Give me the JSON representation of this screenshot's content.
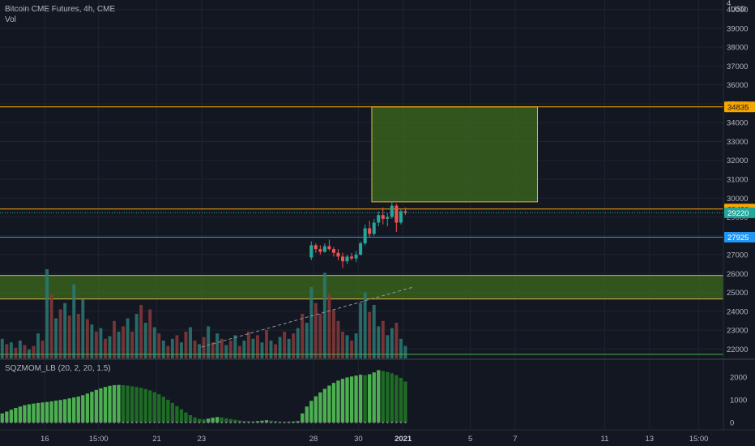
{
  "header": {
    "title": "Bitcoin CME Futures, 4h, CME",
    "volume_label": "Vol",
    "currency": "USD"
  },
  "indicator": {
    "label": "SQZMOM_LB (20, 2, 20, 1.5)"
  },
  "colors": {
    "background": "#131722",
    "grid": "#1f2430",
    "text": "#b2b5be",
    "candle_up": "#26a69a",
    "candle_down": "#ef5350",
    "vol_up": "#2a7a73",
    "vol_down": "#8a3a3a",
    "zone_fill": "#3d6b1e",
    "zone_border": "#e0b341",
    "line_orange": "#f7a600",
    "line_blue": "#2196f3",
    "badge_green": "#26a69a",
    "mom_lime": "#4caf50",
    "mom_dark": "#1e6b24"
  },
  "price_axis": {
    "ticks": [
      22000,
      23000,
      24000,
      25000,
      26000,
      27000,
      28000,
      29000,
      30000,
      31000,
      32000,
      33000,
      34000,
      35000,
      36000,
      37000,
      38000,
      39000,
      40000
    ],
    "top_partial": "4"
  },
  "price_badges": [
    {
      "label": "34835",
      "price": 34835,
      "color": "#f7a600"
    },
    {
      "label": "29420",
      "price": 29420,
      "color": "#f7a600"
    },
    {
      "label": "29220",
      "price": 29220,
      "color": "#26a69a"
    },
    {
      "label": "27925",
      "price": 27925,
      "color": "#2196f3"
    }
  ],
  "horizontal_lines": [
    {
      "price": 34835,
      "color": "#f7a600"
    },
    {
      "price": 29420,
      "color": "#f7a600"
    },
    {
      "price": 27925,
      "color": "#2196f3"
    }
  ],
  "zones": [
    {
      "name": "target-box",
      "price_top": 34835,
      "price_bottom": 29800,
      "time_start": 30.6,
      "time_end": 38.0
    },
    {
      "name": "support-band",
      "price_top": 25900,
      "price_bottom": 24650,
      "time_start": 13.0,
      "time_end": 51.0
    }
  ],
  "momentum_axis": {
    "ticks": [
      0,
      1000,
      2000
    ]
  },
  "time_axis": {
    "ticks": [
      {
        "label": "16",
        "day": 16
      },
      {
        "label": "15:00",
        "day": 18.4
      },
      {
        "label": "21",
        "day": 21
      },
      {
        "label": "23",
        "day": 23
      },
      {
        "label": "28",
        "day": 28
      },
      {
        "label": "30",
        "day": 30
      },
      {
        "label": "2021",
        "day": 32
      },
      {
        "label": "5",
        "day": 35
      },
      {
        "label": "7",
        "day": 37
      },
      {
        "label": "11",
        "day": 41
      },
      {
        "label": "13",
        "day": 43
      },
      {
        "label": "15:00",
        "day": 45.2
      }
    ]
  },
  "chart_data": {
    "type": "candlestick",
    "x_range_days": [
      14.0,
      46.3
    ],
    "price_range": [
      21500,
      40500
    ],
    "candles": [
      {
        "day": 27.9,
        "o": 26850,
        "h": 27700,
        "l": 26700,
        "c": 27500
      },
      {
        "day": 28.1,
        "o": 27500,
        "h": 27600,
        "l": 27100,
        "c": 27300
      },
      {
        "day": 28.3,
        "o": 27300,
        "h": 27500,
        "l": 27000,
        "c": 27150
      },
      {
        "day": 28.5,
        "o": 27150,
        "h": 27600,
        "l": 27100,
        "c": 27450
      },
      {
        "day": 28.7,
        "o": 27450,
        "h": 27800,
        "l": 27200,
        "c": 27300
      },
      {
        "day": 28.9,
        "o": 27300,
        "h": 27400,
        "l": 26900,
        "c": 27100
      },
      {
        "day": 29.1,
        "o": 27100,
        "h": 27300,
        "l": 26700,
        "c": 26900
      },
      {
        "day": 29.3,
        "o": 26900,
        "h": 27100,
        "l": 26300,
        "c": 26650
      },
      {
        "day": 29.5,
        "o": 26650,
        "h": 27000,
        "l": 26500,
        "c": 26900
      },
      {
        "day": 29.7,
        "o": 26900,
        "h": 27100,
        "l": 26700,
        "c": 26800
      },
      {
        "day": 29.9,
        "o": 26800,
        "h": 27200,
        "l": 26600,
        "c": 27000
      },
      {
        "day": 30.1,
        "o": 27000,
        "h": 27700,
        "l": 26950,
        "c": 27600
      },
      {
        "day": 30.3,
        "o": 27600,
        "h": 28600,
        "l": 27500,
        "c": 28400
      },
      {
        "day": 30.5,
        "o": 28400,
        "h": 28800,
        "l": 27950,
        "c": 28100
      },
      {
        "day": 30.7,
        "o": 28100,
        "h": 28900,
        "l": 28000,
        "c": 28700
      },
      {
        "day": 30.9,
        "o": 28700,
        "h": 29300,
        "l": 28500,
        "c": 29100
      },
      {
        "day": 31.1,
        "o": 29100,
        "h": 29500,
        "l": 28600,
        "c": 28900
      },
      {
        "day": 31.3,
        "o": 28900,
        "h": 29200,
        "l": 28500,
        "c": 29000
      },
      {
        "day": 31.5,
        "o": 29000,
        "h": 29800,
        "l": 28900,
        "c": 29600
      },
      {
        "day": 31.7,
        "o": 29600,
        "h": 29700,
        "l": 28200,
        "c": 28700
      },
      {
        "day": 31.9,
        "o": 28700,
        "h": 29400,
        "l": 28600,
        "c": 29300
      },
      {
        "day": 32.1,
        "o": 29300,
        "h": 29500,
        "l": 29100,
        "c": 29220
      }
    ],
    "volume": [
      {
        "day": 14.1,
        "v": 0.22,
        "up": true
      },
      {
        "day": 14.3,
        "v": 0.16,
        "up": false
      },
      {
        "day": 14.5,
        "v": 0.18,
        "up": true
      },
      {
        "day": 14.7,
        "v": 0.12,
        "up": false
      },
      {
        "day": 14.9,
        "v": 0.2,
        "up": true
      },
      {
        "day": 15.1,
        "v": 0.15,
        "up": false
      },
      {
        "day": 15.3,
        "v": 0.1,
        "up": true
      },
      {
        "day": 15.5,
        "v": 0.14,
        "up": false
      },
      {
        "day": 15.7,
        "v": 0.28,
        "up": true
      },
      {
        "day": 15.9,
        "v": 0.2,
        "up": false
      },
      {
        "day": 16.1,
        "v": 1.0,
        "up": true
      },
      {
        "day": 16.3,
        "v": 0.72,
        "up": false
      },
      {
        "day": 16.5,
        "v": 0.45,
        "up": true
      },
      {
        "day": 16.7,
        "v": 0.55,
        "up": false
      },
      {
        "day": 16.9,
        "v": 0.62,
        "up": true
      },
      {
        "day": 17.1,
        "v": 0.48,
        "up": false
      },
      {
        "day": 17.3,
        "v": 0.83,
        "up": true
      },
      {
        "day": 17.5,
        "v": 0.5,
        "up": false
      },
      {
        "day": 17.7,
        "v": 0.66,
        "up": true
      },
      {
        "day": 17.9,
        "v": 0.44,
        "up": false
      },
      {
        "day": 18.1,
        "v": 0.38,
        "up": true
      },
      {
        "day": 18.3,
        "v": 0.3,
        "up": false
      },
      {
        "day": 18.5,
        "v": 0.34,
        "up": true
      },
      {
        "day": 18.7,
        "v": 0.22,
        "up": false
      },
      {
        "day": 18.9,
        "v": 0.25,
        "up": true
      },
      {
        "day": 19.1,
        "v": 0.42,
        "up": false
      },
      {
        "day": 19.3,
        "v": 0.3,
        "up": true
      },
      {
        "day": 19.5,
        "v": 0.36,
        "up": false
      },
      {
        "day": 19.7,
        "v": 0.45,
        "up": true
      },
      {
        "day": 19.9,
        "v": 0.3,
        "up": false
      },
      {
        "day": 20.1,
        "v": 0.5,
        "up": true
      },
      {
        "day": 20.3,
        "v": 0.6,
        "up": false
      },
      {
        "day": 20.5,
        "v": 0.4,
        "up": true
      },
      {
        "day": 20.7,
        "v": 0.55,
        "up": false
      },
      {
        "day": 20.9,
        "v": 0.35,
        "up": true
      },
      {
        "day": 21.1,
        "v": 0.28,
        "up": false
      },
      {
        "day": 21.3,
        "v": 0.2,
        "up": true
      },
      {
        "day": 21.5,
        "v": 0.14,
        "up": false
      },
      {
        "day": 21.7,
        "v": 0.22,
        "up": true
      },
      {
        "day": 21.9,
        "v": 0.26,
        "up": false
      },
      {
        "day": 22.1,
        "v": 0.18,
        "up": true
      },
      {
        "day": 22.3,
        "v": 0.3,
        "up": false
      },
      {
        "day": 22.5,
        "v": 0.35,
        "up": true
      },
      {
        "day": 22.7,
        "v": 0.2,
        "up": false
      },
      {
        "day": 22.9,
        "v": 0.16,
        "up": true
      },
      {
        "day": 23.1,
        "v": 0.24,
        "up": false
      },
      {
        "day": 23.3,
        "v": 0.36,
        "up": true
      },
      {
        "day": 23.5,
        "v": 0.18,
        "up": false
      },
      {
        "day": 23.7,
        "v": 0.28,
        "up": true
      },
      {
        "day": 23.9,
        "v": 0.22,
        "up": false
      },
      {
        "day": 24.1,
        "v": 0.15,
        "up": true
      },
      {
        "day": 24.3,
        "v": 0.2,
        "up": false
      },
      {
        "day": 24.5,
        "v": 0.26,
        "up": true
      },
      {
        "day": 24.7,
        "v": 0.14,
        "up": false
      },
      {
        "day": 24.9,
        "v": 0.2,
        "up": true
      },
      {
        "day": 25.1,
        "v": 0.3,
        "up": false
      },
      {
        "day": 25.3,
        "v": 0.22,
        "up": true
      },
      {
        "day": 25.5,
        "v": 0.26,
        "up": false
      },
      {
        "day": 25.7,
        "v": 0.18,
        "up": true
      },
      {
        "day": 25.9,
        "v": 0.32,
        "up": false
      },
      {
        "day": 26.1,
        "v": 0.2,
        "up": true
      },
      {
        "day": 26.3,
        "v": 0.16,
        "up": false
      },
      {
        "day": 26.5,
        "v": 0.24,
        "up": true
      },
      {
        "day": 26.7,
        "v": 0.3,
        "up": false
      },
      {
        "day": 26.9,
        "v": 0.22,
        "up": true
      },
      {
        "day": 27.1,
        "v": 0.28,
        "up": false
      },
      {
        "day": 27.3,
        "v": 0.34,
        "up": true
      },
      {
        "day": 27.5,
        "v": 0.5,
        "up": false
      },
      {
        "day": 27.7,
        "v": 0.4,
        "up": true
      },
      {
        "day": 27.9,
        "v": 0.8,
        "up": true
      },
      {
        "day": 28.1,
        "v": 0.62,
        "up": false
      },
      {
        "day": 28.3,
        "v": 0.5,
        "up": false
      },
      {
        "day": 28.5,
        "v": 0.96,
        "up": true
      },
      {
        "day": 28.7,
        "v": 0.72,
        "up": false
      },
      {
        "day": 28.9,
        "v": 0.54,
        "up": false
      },
      {
        "day": 29.1,
        "v": 0.42,
        "up": false
      },
      {
        "day": 29.3,
        "v": 0.3,
        "up": false
      },
      {
        "day": 29.5,
        "v": 0.26,
        "up": true
      },
      {
        "day": 29.7,
        "v": 0.2,
        "up": false
      },
      {
        "day": 29.9,
        "v": 0.28,
        "up": true
      },
      {
        "day": 30.1,
        "v": 0.62,
        "up": true
      },
      {
        "day": 30.3,
        "v": 0.74,
        "up": true
      },
      {
        "day": 30.5,
        "v": 0.52,
        "up": false
      },
      {
        "day": 30.7,
        "v": 0.6,
        "up": true
      },
      {
        "day": 30.9,
        "v": 0.36,
        "up": true
      },
      {
        "day": 31.1,
        "v": 0.42,
        "up": false
      },
      {
        "day": 31.3,
        "v": 0.26,
        "up": true
      },
      {
        "day": 31.5,
        "v": 0.34,
        "up": true
      },
      {
        "day": 31.7,
        "v": 0.4,
        "up": false
      },
      {
        "day": 31.9,
        "v": 0.22,
        "up": true
      },
      {
        "day": 32.1,
        "v": 0.14,
        "up": true
      }
    ],
    "momentum": [
      {
        "day": 14.1,
        "v": 400
      },
      {
        "day": 14.3,
        "v": 480
      },
      {
        "day": 14.5,
        "v": 560
      },
      {
        "day": 14.7,
        "v": 640
      },
      {
        "day": 14.9,
        "v": 700
      },
      {
        "day": 15.1,
        "v": 760
      },
      {
        "day": 15.3,
        "v": 800
      },
      {
        "day": 15.5,
        "v": 830
      },
      {
        "day": 15.7,
        "v": 860
      },
      {
        "day": 15.9,
        "v": 880
      },
      {
        "day": 16.1,
        "v": 900
      },
      {
        "day": 16.3,
        "v": 930
      },
      {
        "day": 16.5,
        "v": 960
      },
      {
        "day": 16.7,
        "v": 990
      },
      {
        "day": 16.9,
        "v": 1020
      },
      {
        "day": 17.1,
        "v": 1060
      },
      {
        "day": 17.3,
        "v": 1100
      },
      {
        "day": 17.5,
        "v": 1140
      },
      {
        "day": 17.7,
        "v": 1200
      },
      {
        "day": 17.9,
        "v": 1270
      },
      {
        "day": 18.1,
        "v": 1350
      },
      {
        "day": 18.3,
        "v": 1430
      },
      {
        "day": 18.5,
        "v": 1500
      },
      {
        "day": 18.7,
        "v": 1560
      },
      {
        "day": 18.9,
        "v": 1610
      },
      {
        "day": 19.1,
        "v": 1640
      },
      {
        "day": 19.3,
        "v": 1650
      },
      {
        "day": 19.5,
        "v": 1640
      },
      {
        "day": 19.7,
        "v": 1620
      },
      {
        "day": 19.9,
        "v": 1590
      },
      {
        "day": 20.1,
        "v": 1560
      },
      {
        "day": 20.3,
        "v": 1520
      },
      {
        "day": 20.5,
        "v": 1470
      },
      {
        "day": 20.7,
        "v": 1410
      },
      {
        "day": 20.9,
        "v": 1330
      },
      {
        "day": 21.1,
        "v": 1240
      },
      {
        "day": 21.3,
        "v": 1130
      },
      {
        "day": 21.5,
        "v": 1000
      },
      {
        "day": 21.7,
        "v": 860
      },
      {
        "day": 21.9,
        "v": 720
      },
      {
        "day": 22.1,
        "v": 580
      },
      {
        "day": 22.3,
        "v": 440
      },
      {
        "day": 22.5,
        "v": 320
      },
      {
        "day": 22.7,
        "v": 220
      },
      {
        "day": 22.9,
        "v": 160
      },
      {
        "day": 23.1,
        "v": 140
      },
      {
        "day": 23.3,
        "v": 170
      },
      {
        "day": 23.5,
        "v": 210
      },
      {
        "day": 23.7,
        "v": 240
      },
      {
        "day": 23.9,
        "v": 220
      },
      {
        "day": 24.1,
        "v": 180
      },
      {
        "day": 24.3,
        "v": 150
      },
      {
        "day": 24.5,
        "v": 120
      },
      {
        "day": 24.7,
        "v": 90
      },
      {
        "day": 24.9,
        "v": 70
      },
      {
        "day": 25.1,
        "v": 60
      },
      {
        "day": 25.3,
        "v": 50
      },
      {
        "day": 25.5,
        "v": 60
      },
      {
        "day": 25.7,
        "v": 80
      },
      {
        "day": 25.9,
        "v": 100
      },
      {
        "day": 26.1,
        "v": 80
      },
      {
        "day": 26.3,
        "v": 60
      },
      {
        "day": 26.5,
        "v": 40
      },
      {
        "day": 26.7,
        "v": 30
      },
      {
        "day": 26.9,
        "v": 30
      },
      {
        "day": 27.1,
        "v": 40
      },
      {
        "day": 27.3,
        "v": 60
      },
      {
        "day": 27.5,
        "v": 400
      },
      {
        "day": 27.7,
        "v": 700
      },
      {
        "day": 27.9,
        "v": 950
      },
      {
        "day": 28.1,
        "v": 1150
      },
      {
        "day": 28.3,
        "v": 1320
      },
      {
        "day": 28.5,
        "v": 1480
      },
      {
        "day": 28.7,
        "v": 1620
      },
      {
        "day": 28.9,
        "v": 1740
      },
      {
        "day": 29.1,
        "v": 1840
      },
      {
        "day": 29.3,
        "v": 1920
      },
      {
        "day": 29.5,
        "v": 1980
      },
      {
        "day": 29.7,
        "v": 2020
      },
      {
        "day": 29.9,
        "v": 2060
      },
      {
        "day": 30.1,
        "v": 2100
      },
      {
        "day": 30.3,
        "v": 2080
      },
      {
        "day": 30.5,
        "v": 2120
      },
      {
        "day": 30.7,
        "v": 2200
      },
      {
        "day": 30.9,
        "v": 2300
      },
      {
        "day": 31.1,
        "v": 2260
      },
      {
        "day": 31.3,
        "v": 2220
      },
      {
        "day": 31.5,
        "v": 2160
      },
      {
        "day": 31.7,
        "v": 2080
      },
      {
        "day": 31.9,
        "v": 1960
      },
      {
        "day": 32.1,
        "v": 1800
      }
    ],
    "trend_line": {
      "x1": 23.0,
      "p1": 22100,
      "x2": 32.5,
      "p2": 25300
    }
  }
}
